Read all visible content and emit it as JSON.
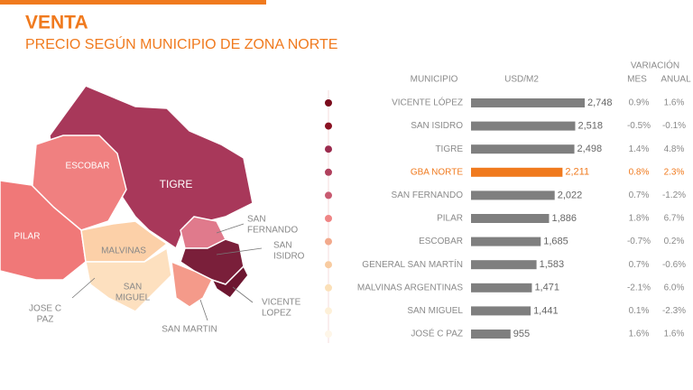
{
  "header": {
    "title": "VENTA",
    "subtitle": "PRECIO SEGÚN MUNICIPIO DE ZONA NORTE"
  },
  "chart_data": {
    "type": "bar",
    "orientation": "horizontal",
    "headers": {
      "category": "MUNICIPIO",
      "value": "USD/M2",
      "variation": "VARIACIÓN",
      "month": "MES",
      "year": "ANUAL"
    },
    "categories": [
      "VICENTE LÓPEZ",
      "SAN ISIDRO",
      "TIGRE",
      "GBA NORTE",
      "SAN FERNANDO",
      "PILAR",
      "ESCOBAR",
      "GENERAL SAN MARTÍN",
      "MALVINAS ARGENTINAS",
      "SAN MIGUEL",
      "JOSÉ C PAZ"
    ],
    "values": [
      2748,
      2518,
      2498,
      2211,
      2022,
      1886,
      1685,
      1583,
      1471,
      1441,
      955
    ],
    "value_labels": [
      "2,748",
      "2,518",
      "2,498",
      "2,211",
      "2,022",
      "1,886",
      "1,685",
      "1,583",
      "1,471",
      "1,441",
      "955"
    ],
    "mes": [
      "0.9%",
      "-0.5%",
      "1.4%",
      "0.8%",
      "0.7%",
      "1.8%",
      "-0.7%",
      "0.7%",
      "-2.1%",
      "0.1%",
      "1.6%"
    ],
    "anual": [
      "1.6%",
      "-0.1%",
      "4.8%",
      "2.3%",
      "-1.2%",
      "6.7%",
      "0.2%",
      "-0.6%",
      "6.0%",
      "-2.3%",
      "1.6%"
    ],
    "color": "#7f7f7f",
    "highlight": "GBA NORTE",
    "highlight_color": "#f07a1e",
    "dot_colors": [
      "#7a0b1c",
      "#8a1222",
      "#9b2b4e",
      "#b0405d",
      "#c85a70",
      "#ef8585",
      "#f2a98c",
      "#f8cba0",
      "#fbe0b8",
      "#fdf0d8",
      "#fef6e8"
    ]
  },
  "map": {
    "labels": [
      [
        "ESCOBAR"
      ],
      [
        "TIGRE"
      ],
      [
        "PILAR"
      ],
      [
        "MALVINAS"
      ],
      [
        "SAN",
        "MIGUEL"
      ],
      [
        "JOSE  C",
        "PAZ"
      ],
      [
        "SAN MARTIN"
      ],
      [
        "SAN",
        "FERNANDO"
      ],
      [
        "SAN",
        "ISIDRO"
      ],
      [
        "VICENTE",
        "LOPEZ"
      ]
    ]
  }
}
